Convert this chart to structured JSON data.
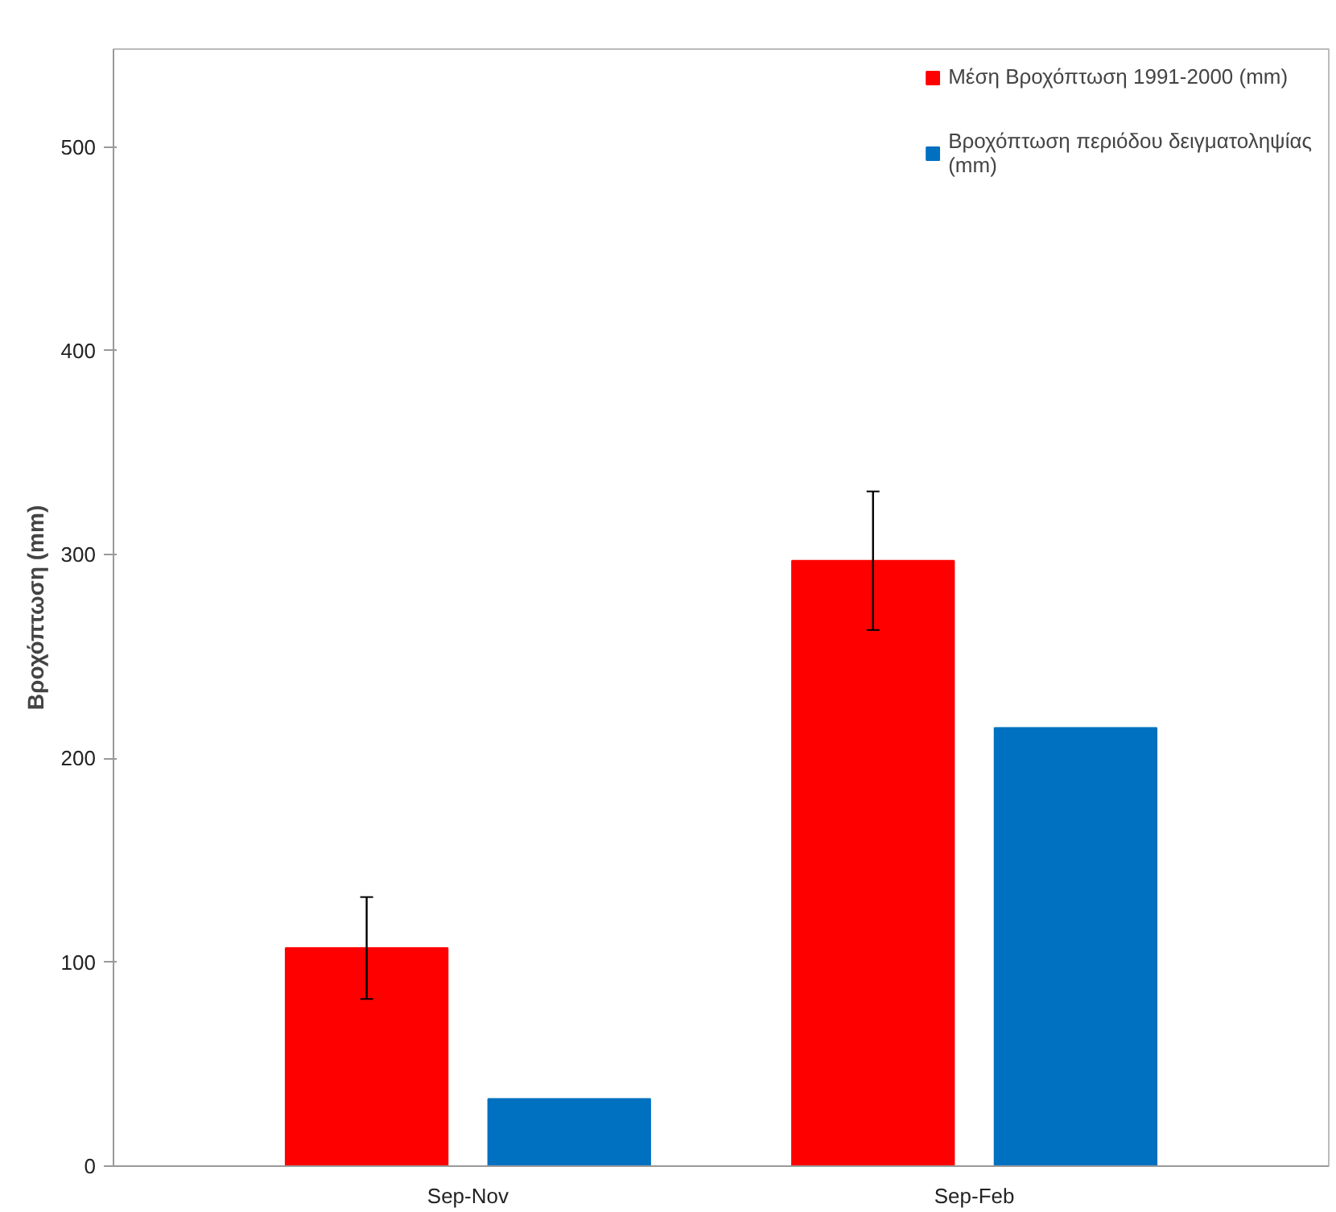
{
  "chart_data": {
    "type": "bar",
    "ylabel": "Βροχόπτωση (mm)",
    "categories": [
      "Sep-Nov",
      "Sep-Feb"
    ],
    "series": [
      {
        "name": "Μέση Βροχόπτωση 1991-2000 (mm)",
        "color": "#ff0000",
        "values": [
          107,
          297
        ],
        "errors": [
          25,
          34
        ]
      },
      {
        "name": "Βροχόπτωση περιόδου δειγματοληψίας (mm)",
        "color": "#0070c0",
        "values": [
          33,
          215
        ]
      }
    ],
    "ylim": [
      0,
      548
    ],
    "yticks": [
      0,
      100,
      200,
      300,
      400,
      500
    ],
    "grid": false,
    "legend": "top right"
  }
}
